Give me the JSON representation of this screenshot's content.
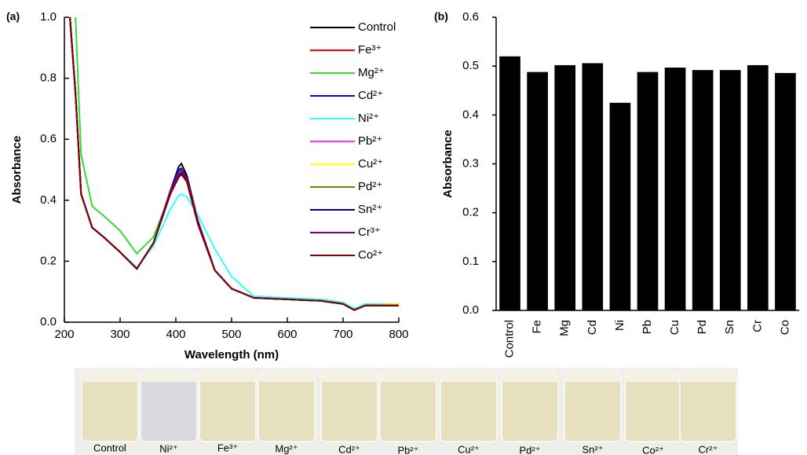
{
  "chart_data": [
    {
      "type": "line",
      "panel_label": "(a)",
      "x_label": "Wavelength (nm)",
      "y_label": "Absorbance",
      "xlim": [
        200,
        800
      ],
      "xticks": [
        200,
        300,
        400,
        500,
        600,
        700,
        800
      ],
      "ylim": [
        0,
        1.0
      ],
      "yticks": [
        {
          "value": 0,
          "label": "0.0"
        },
        {
          "value": 0.2,
          "label": "0.2"
        },
        {
          "value": 0.4,
          "label": "0.4"
        },
        {
          "value": 0.6,
          "label": "0.6"
        },
        {
          "value": 0.8,
          "label": "0.8"
        },
        {
          "value": 1.0,
          "label": "1.0"
        }
      ],
      "x": [
        210,
        220,
        230,
        250,
        270,
        300,
        330,
        360,
        390,
        405,
        410,
        420,
        440,
        470,
        500,
        540,
        600,
        660,
        700,
        720,
        740,
        800
      ],
      "series": [
        {
          "name": "Control",
          "color": "#000000",
          "values": [
            1.0,
            0.75,
            0.42,
            0.31,
            0.28,
            0.23,
            0.175,
            0.26,
            0.43,
            0.51,
            0.52,
            0.48,
            0.33,
            0.17,
            0.11,
            0.08,
            0.075,
            0.07,
            0.06,
            0.04,
            0.055,
            0.055
          ]
        },
        {
          "name": "Fe³⁺",
          "color": "#ff0000",
          "values": [
            1.0,
            0.75,
            0.42,
            0.31,
            0.28,
            0.23,
            0.175,
            0.26,
            0.42,
            0.48,
            0.49,
            0.46,
            0.32,
            0.17,
            0.11,
            0.08,
            0.075,
            0.07,
            0.06,
            0.04,
            0.055,
            0.055
          ]
        },
        {
          "name": "Mg²⁺",
          "color": "#33dd33",
          "values": [
            null,
            1.0,
            0.55,
            0.38,
            0.35,
            0.3,
            0.225,
            0.28,
            0.42,
            0.49,
            0.5,
            0.47,
            0.33,
            0.17,
            0.11,
            0.08,
            0.075,
            0.07,
            0.06,
            0.04,
            0.055,
            0.06
          ]
        },
        {
          "name": "Cd²⁺",
          "color": "#0000ff",
          "values": [
            1.0,
            0.75,
            0.42,
            0.31,
            0.28,
            0.23,
            0.175,
            0.26,
            0.43,
            0.5,
            0.505,
            0.47,
            0.33,
            0.17,
            0.11,
            0.08,
            0.075,
            0.07,
            0.06,
            0.04,
            0.055,
            0.055
          ]
        },
        {
          "name": "Ni²⁺",
          "color": "#33ffff",
          "values": [
            1.0,
            0.75,
            0.42,
            0.31,
            0.28,
            0.23,
            0.18,
            0.25,
            0.37,
            0.415,
            0.42,
            0.41,
            0.35,
            0.24,
            0.15,
            0.085,
            0.08,
            0.075,
            0.065,
            0.045,
            0.06,
            0.06
          ]
        },
        {
          "name": "Pb²⁺",
          "color": "#ff33ff",
          "values": [
            1.0,
            0.75,
            0.42,
            0.31,
            0.28,
            0.23,
            0.175,
            0.26,
            0.42,
            0.48,
            0.49,
            0.46,
            0.32,
            0.17,
            0.11,
            0.08,
            0.075,
            0.07,
            0.06,
            0.04,
            0.055,
            0.055
          ]
        },
        {
          "name": "Cu²⁺",
          "color": "#ffff00",
          "values": [
            1.0,
            0.75,
            0.42,
            0.31,
            0.28,
            0.23,
            0.175,
            0.26,
            0.42,
            0.49,
            0.495,
            0.46,
            0.32,
            0.17,
            0.11,
            0.08,
            0.075,
            0.07,
            0.06,
            0.04,
            0.055,
            0.06
          ]
        },
        {
          "name": "Pd²⁺",
          "color": "#808000",
          "values": [
            1.0,
            0.75,
            0.42,
            0.31,
            0.28,
            0.23,
            0.175,
            0.26,
            0.42,
            0.48,
            0.49,
            0.46,
            0.32,
            0.17,
            0.11,
            0.08,
            0.075,
            0.07,
            0.06,
            0.04,
            0.055,
            0.055
          ]
        },
        {
          "name": "Sn²⁺",
          "color": "#000080",
          "values": [
            1.0,
            0.75,
            0.42,
            0.31,
            0.28,
            0.23,
            0.175,
            0.26,
            0.42,
            0.48,
            0.49,
            0.46,
            0.32,
            0.17,
            0.11,
            0.08,
            0.075,
            0.07,
            0.06,
            0.04,
            0.055,
            0.055
          ]
        },
        {
          "name": "Cr³⁺",
          "color": "#800080",
          "values": [
            1.0,
            0.75,
            0.42,
            0.31,
            0.28,
            0.23,
            0.175,
            0.26,
            0.43,
            0.49,
            0.5,
            0.47,
            0.33,
            0.17,
            0.11,
            0.08,
            0.075,
            0.07,
            0.06,
            0.04,
            0.055,
            0.055
          ]
        },
        {
          "name": "Co²⁺",
          "color": "#800000",
          "values": [
            1.0,
            0.75,
            0.42,
            0.31,
            0.28,
            0.23,
            0.175,
            0.26,
            0.42,
            0.475,
            0.485,
            0.46,
            0.32,
            0.17,
            0.11,
            0.08,
            0.075,
            0.07,
            0.06,
            0.04,
            0.055,
            0.055
          ]
        }
      ]
    },
    {
      "type": "bar",
      "panel_label": "(b)",
      "y_label": "Absorbance",
      "color": "#000000",
      "categories": [
        "Control",
        "Fe",
        "Mg",
        "Cd",
        "Ni",
        "Pb",
        "Cu",
        "Pd",
        "Sn",
        "Cr",
        "Co"
      ],
      "values": [
        0.52,
        0.488,
        0.502,
        0.506,
        0.425,
        0.488,
        0.497,
        0.492,
        0.492,
        0.502,
        0.486
      ],
      "ylim": [
        0,
        0.6
      ],
      "yticks": [
        {
          "value": 0,
          "label": "0.0"
        },
        {
          "value": 0.1,
          "label": "0.1"
        },
        {
          "value": 0.2,
          "label": "0.2"
        },
        {
          "value": 0.3,
          "label": "0.3"
        },
        {
          "value": 0.4,
          "label": "0.4"
        },
        {
          "value": 0.5,
          "label": "0.5"
        },
        {
          "value": 0.6,
          "label": "0.6"
        }
      ]
    }
  ],
  "photo": {
    "labels": [
      "Control",
      "Ni²⁺",
      "Fe³⁺",
      "Mg²⁺",
      "Cd²⁺",
      "Pb²⁺",
      "Cu²⁺",
      "Pd²⁺",
      "Sn²⁺",
      "Co²⁺",
      "Cr²⁺"
    ]
  }
}
